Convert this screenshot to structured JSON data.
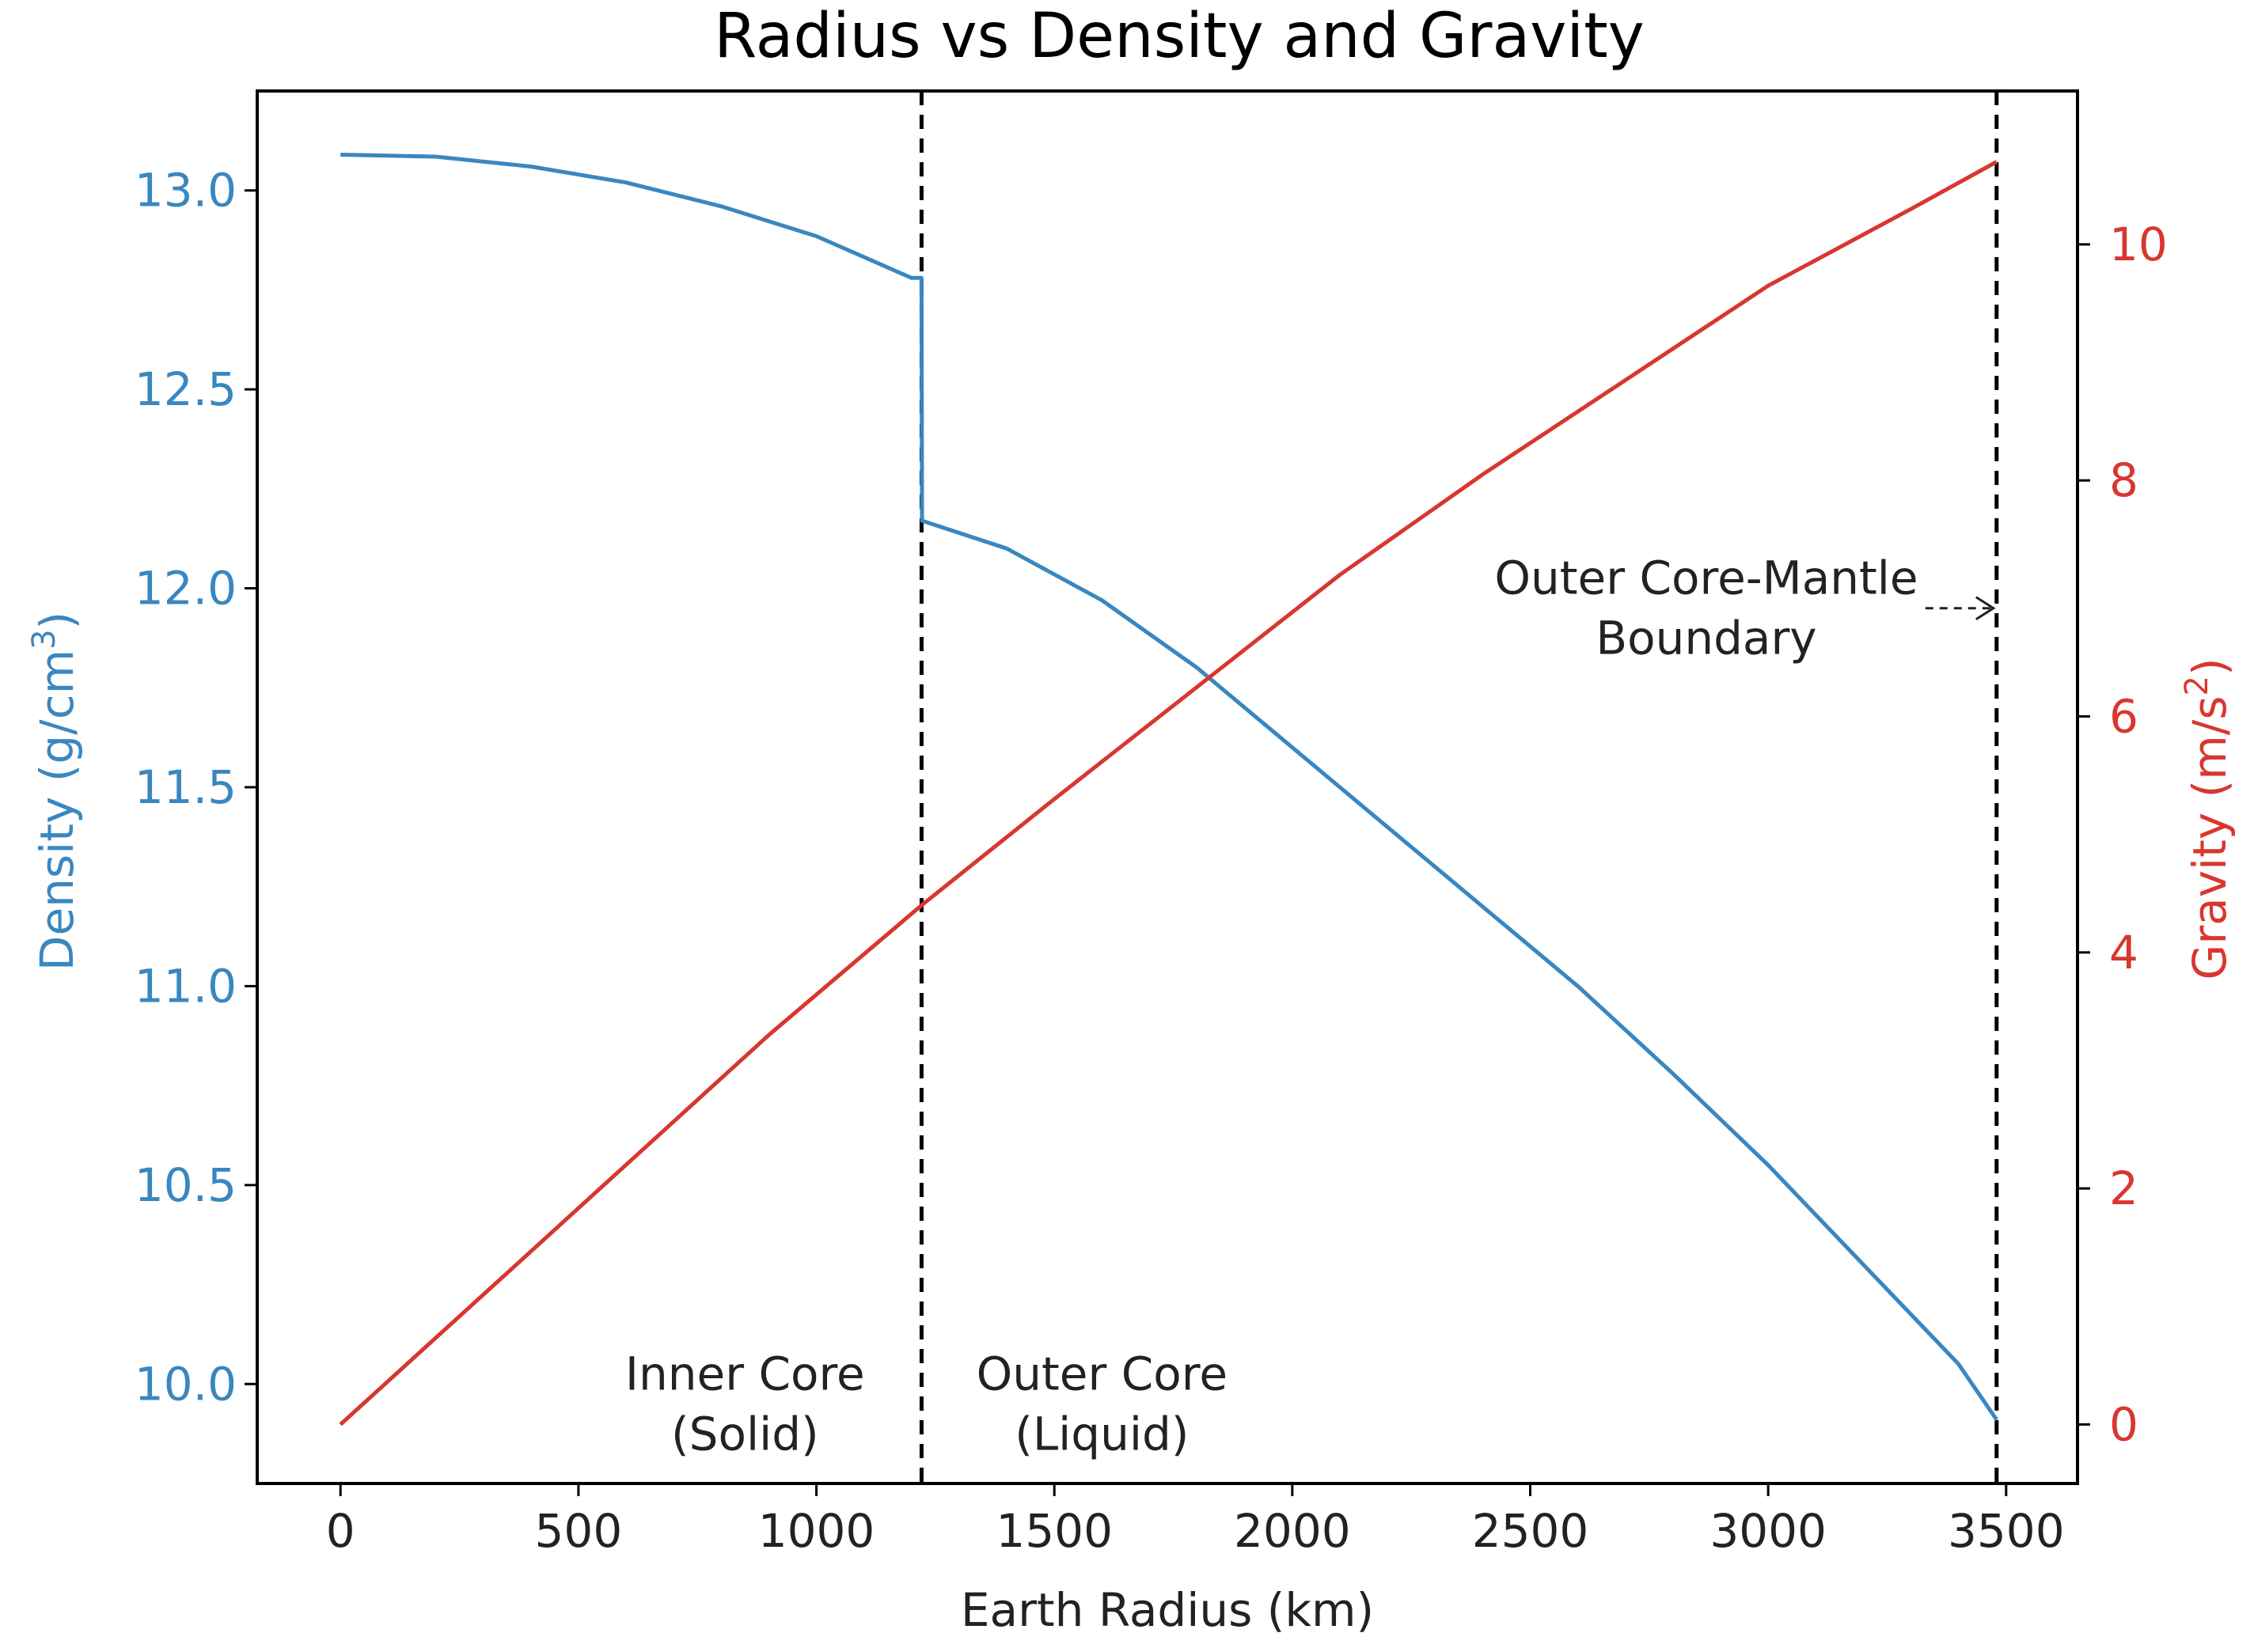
{
  "chart_data": {
    "type": "line",
    "title": "Radius vs Density and Gravity",
    "xlabel": "Earth Radius (km)",
    "xlim": [
      -175,
      3650
    ],
    "xticks": [
      0,
      500,
      1000,
      1500,
      2000,
      2500,
      3000,
      3500
    ],
    "y_left": {
      "label": "Density (g/cm",
      "label_sup": "3",
      "label_end": ")",
      "lim": [
        9.75,
        13.25
      ],
      "ticks": [
        "10.0",
        "10.5",
        "11.0",
        "11.5",
        "12.0",
        "12.5",
        "13.0"
      ],
      "color": "#3a87c0"
    },
    "y_right": {
      "label": "Gravity (m/s",
      "label_sup": "2",
      "label_end": ")",
      "lim": [
        -0.5,
        11.3
      ],
      "ticks": [
        "0",
        "2",
        "4",
        "6",
        "8",
        "10"
      ],
      "color": "#d9362f"
    },
    "series": [
      {
        "name": "Density",
        "axis": "left",
        "color": "#3a87c0",
        "x": [
          0,
          200,
          400,
          600,
          800,
          1000,
          1200,
          1221,
          1222,
          1400,
          1600,
          1800,
          2000,
          2200,
          2400,
          2600,
          2800,
          3000,
          3200,
          3400,
          3480
        ],
        "y": [
          13.09,
          13.085,
          13.06,
          13.02,
          12.96,
          12.885,
          12.78,
          12.78,
          12.17,
          12.1,
          11.97,
          11.8,
          11.6,
          11.4,
          11.2,
          11.0,
          10.78,
          10.55,
          10.3,
          10.05,
          9.91
        ]
      },
      {
        "name": "Gravity",
        "axis": "right",
        "color": "#d9362f",
        "x": [
          0,
          300,
          600,
          900,
          1221,
          1500,
          1800,
          2100,
          2400,
          2700,
          3000,
          3300,
          3480
        ],
        "y": [
          0,
          1.1,
          2.2,
          3.3,
          4.4,
          5.3,
          6.25,
          7.2,
          8.05,
          8.85,
          9.65,
          10.3,
          10.7
        ]
      }
    ],
    "boundaries": [
      1221,
      3480
    ],
    "annotations": [
      {
        "lines": [
          "Inner Core",
          "(Solid)"
        ],
        "x": 850,
        "y": 9.95
      },
      {
        "lines": [
          "Outer Core",
          "(Liquid)"
        ],
        "x": 1600,
        "y": 9.95
      },
      {
        "lines": [
          "Outer Core-Mantle",
          "Boundary"
        ],
        "x": 2870,
        "y": 11.95,
        "arrow_to": [
          3480,
          11.95
        ]
      }
    ]
  }
}
